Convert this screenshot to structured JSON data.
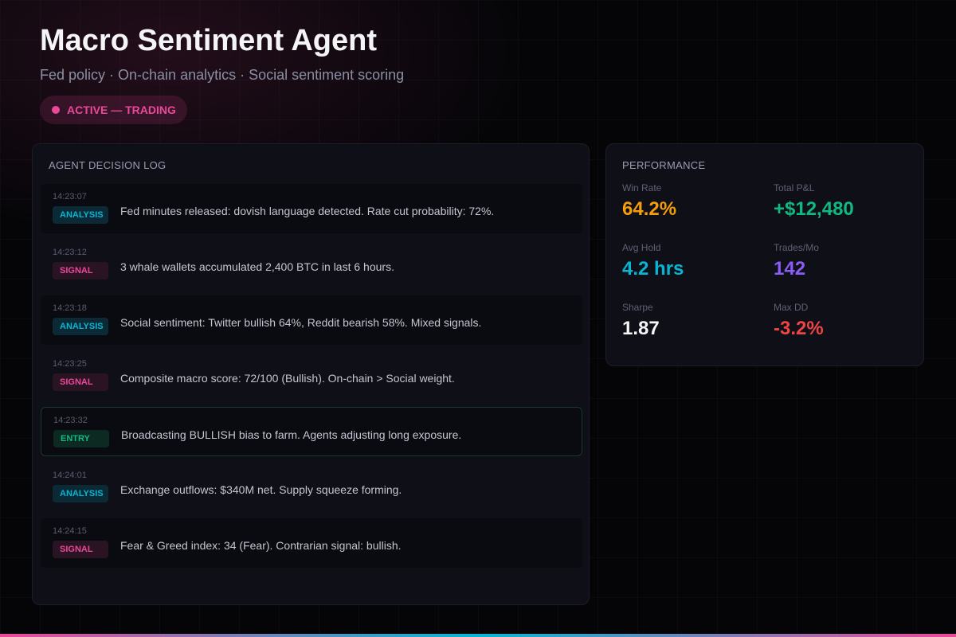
{
  "header": {
    "title": "Macro Sentiment Agent",
    "subtitle": "Fed policy · On-chain analytics · Social sentiment scoring",
    "status": "ACTIVE — TRADING"
  },
  "log": {
    "title": "AGENT DECISION LOG",
    "entries": [
      {
        "time": "14:23:07",
        "tag": "ANALYSIS",
        "type": "analysis",
        "message": "Fed minutes released: dovish language detected. Rate cut probability: 72%."
      },
      {
        "time": "14:23:12",
        "tag": "SIGNAL",
        "type": "signal",
        "message": "3 whale wallets accumulated 2,400 BTC in last 6 hours."
      },
      {
        "time": "14:23:18",
        "tag": "ANALYSIS",
        "type": "analysis",
        "message": "Social sentiment: Twitter bullish 64%, Reddit bearish 58%. Mixed signals."
      },
      {
        "time": "14:23:25",
        "tag": "SIGNAL",
        "type": "signal",
        "message": "Composite macro score: 72/100 (Bullish). On-chain > Social weight."
      },
      {
        "time": "14:23:32",
        "tag": "ENTRY",
        "type": "entry",
        "message": "Broadcasting BULLISH bias to farm. Agents adjusting long exposure."
      },
      {
        "time": "14:24:01",
        "tag": "ANALYSIS",
        "type": "analysis",
        "message": "Exchange outflows: $340M net. Supply squeeze forming."
      },
      {
        "time": "14:24:15",
        "tag": "SIGNAL",
        "type": "signal",
        "message": "Fear & Greed index: 34 (Fear). Contrarian signal: bullish."
      }
    ]
  },
  "performance": {
    "title": "PERFORMANCE",
    "stats": [
      {
        "label": "Win Rate",
        "value": "64.2%",
        "color": "#f59e0b"
      },
      {
        "label": "Total P&L",
        "value": "+$12,480",
        "color": "#10b981"
      },
      {
        "label": "Avg Hold",
        "value": "4.2 hrs",
        "color": "#06b6d4"
      },
      {
        "label": "Trades/Mo",
        "value": "142",
        "color": "#8b5cf6"
      },
      {
        "label": "Sharpe",
        "value": "1.87",
        "color": "#f5f5f7"
      },
      {
        "label": "Max DD",
        "value": "-3.2%",
        "color": "#ef4444"
      }
    ]
  }
}
